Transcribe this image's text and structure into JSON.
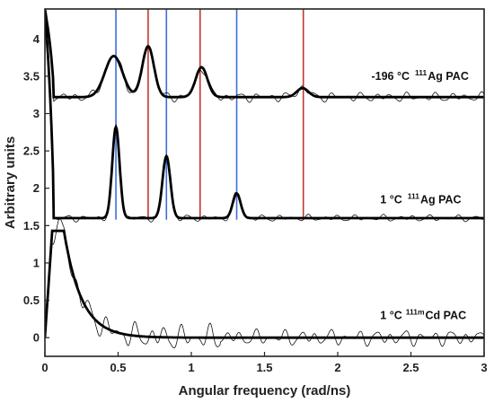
{
  "chart_data": {
    "type": "line",
    "xlabel": "Angular frequency (rad/ns)",
    "ylabel": "Arbitrary units",
    "xlim": [
      0,
      3
    ],
    "ylim": [
      -0.25,
      4.4
    ],
    "x_ticks": [
      "0",
      "0.5",
      "1",
      "1.5",
      "2",
      "2.5",
      "3"
    ],
    "x_tick_values": [
      0,
      0.5,
      1,
      1.5,
      2,
      2.5,
      3
    ],
    "y_ticks": [
      "0",
      "0.5",
      "1",
      "1.5",
      "2",
      "2.5",
      "3",
      "3.5",
      "4"
    ],
    "y_tick_values": [
      0,
      0.5,
      1,
      1.5,
      2,
      2.5,
      3,
      3.5,
      4
    ],
    "grid": false,
    "annotations": [
      {
        "text": "-196 °C",
        "sup": "111",
        "element": "Ag PAC",
        "x": 2.23,
        "y": 3.45
      },
      {
        "text": "1 °C",
        "sup": "111",
        "element": "Ag PAC",
        "x": 2.29,
        "y": 1.8
      },
      {
        "text": "1 °C",
        "sup": "111m",
        "element": "Cd PAC",
        "x": 2.29,
        "y": 0.25
      }
    ],
    "vertical_lines": {
      "blue": [
        0.485,
        0.83,
        1.31
      ],
      "red": [
        0.705,
        1.06,
        1.765
      ],
      "blue_color": "#3a6fd8",
      "red_color": "#c0392b"
    },
    "series": [
      {
        "role": "fit",
        "baseline": 3.22,
        "peaks": [
          {
            "x": 0.47,
            "amp": 0.55,
            "w": 0.06
          },
          {
            "x": 0.705,
            "amp": 0.68,
            "w": 0.04
          },
          {
            "x": 1.07,
            "amp": 0.4,
            "w": 0.04
          },
          {
            "x": 1.76,
            "amp": 0.12,
            "w": 0.04
          }
        ],
        "low_x_spike": {
          "x0": 0.06,
          "top": 4.4
        },
        "color": "#000000"
      },
      {
        "role": "fit",
        "baseline": 1.6,
        "peaks": [
          {
            "x": 0.485,
            "amp": 1.22,
            "w": 0.025
          },
          {
            "x": 0.83,
            "amp": 0.83,
            "w": 0.027
          },
          {
            "x": 1.31,
            "amp": 0.33,
            "w": 0.027
          }
        ],
        "low_x_spike": {
          "x0": 0.06,
          "top": 4.4
        },
        "color": "#000000"
      },
      {
        "role": "fit",
        "baseline": 0,
        "peaks": [],
        "decay": {
          "plateau": 1.43,
          "rise_end": 0.05,
          "hold_end": 0.13,
          "tau": 0.12
        },
        "color": "#000000"
      }
    ]
  }
}
